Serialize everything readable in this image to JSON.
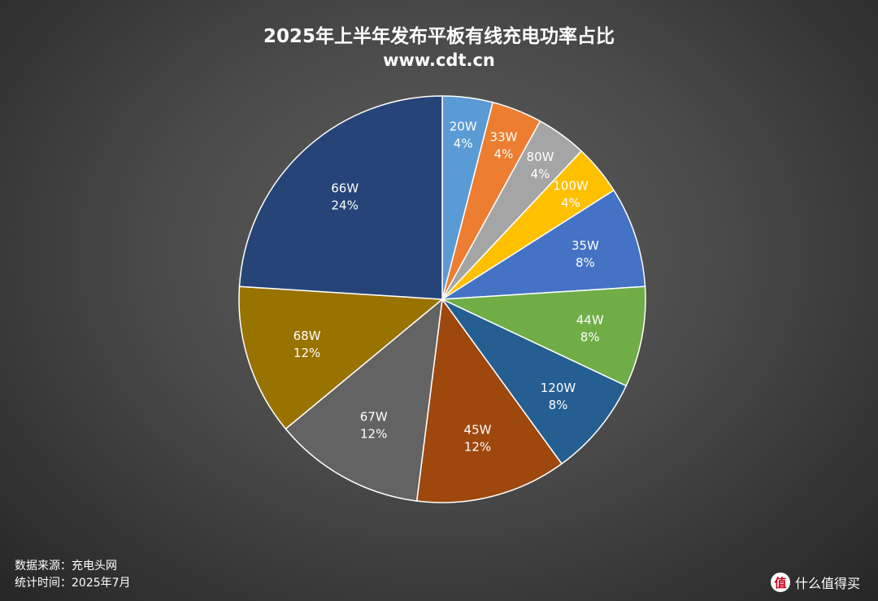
{
  "header": {
    "title": "2025年上半年发布平板有线充电功率占比",
    "subtitle": "www.cdt.cn"
  },
  "footer": {
    "source": "数据来源：充电头网",
    "period": "统计时间：2025年7月"
  },
  "watermark": {
    "text": "什么值得买",
    "icon_char": "值",
    "icon": "zhide-logo-icon"
  },
  "chart_data": {
    "type": "pie",
    "title": "2025年上半年发布平板有线充电功率占比",
    "subtitle": "www.cdt.cn",
    "start_angle_deg": 0,
    "direction": "clockwise",
    "legend": "none",
    "slices": [
      {
        "label": "20W",
        "value": 4,
        "pct_label": "4%",
        "color": "#5b9bd5"
      },
      {
        "label": "33W",
        "value": 4,
        "pct_label": "4%",
        "color": "#ed7d31"
      },
      {
        "label": "80W",
        "value": 4,
        "pct_label": "4%",
        "color": "#a5a5a5"
      },
      {
        "label": "100W",
        "value": 4,
        "pct_label": "4%",
        "color": "#ffc000"
      },
      {
        "label": "35W",
        "value": 8,
        "pct_label": "8%",
        "color": "#4472c4"
      },
      {
        "label": "44W",
        "value": 8,
        "pct_label": "8%",
        "color": "#70ad47"
      },
      {
        "label": "120W",
        "value": 8,
        "pct_label": "8%",
        "color": "#255e91"
      },
      {
        "label": "45W",
        "value": 12,
        "pct_label": "12%",
        "color": "#9e480e"
      },
      {
        "label": "67W",
        "value": 12,
        "pct_label": "12%",
        "color": "#636363"
      },
      {
        "label": "68W",
        "value": 12,
        "pct_label": "12%",
        "color": "#997300"
      },
      {
        "label": "66W",
        "value": 24,
        "pct_label": "24%",
        "color": "#264478"
      }
    ]
  }
}
